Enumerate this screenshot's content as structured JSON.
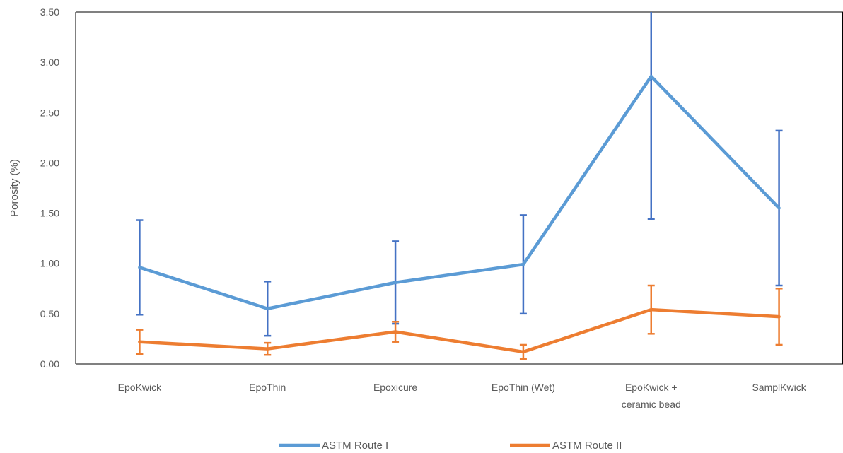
{
  "chart_data": {
    "type": "line",
    "categories": [
      [
        "EpoKwick"
      ],
      [
        "EpoThin"
      ],
      [
        "Epoxicure"
      ],
      [
        "EpoThin (Wet)"
      ],
      [
        "EpoKwick +",
        "ceramic bead"
      ],
      [
        "SamplKwick"
      ]
    ],
    "ylabel": "Porosity (%)",
    "ylim": [
      0,
      3.5
    ],
    "yticks": [
      "0.00",
      "0.50",
      "1.00",
      "1.50",
      "2.00",
      "2.50",
      "3.00",
      "3.50"
    ],
    "ytick_values": [
      0,
      0.5,
      1,
      1.5,
      2,
      2.5,
      3,
      3.5
    ],
    "grid": false,
    "legend_position": "bottom",
    "series": [
      {
        "name": "ASTM Route I",
        "color": "#5B9BD5",
        "error_color": "#4472C4",
        "values": [
          0.96,
          0.55,
          0.81,
          0.99,
          2.86,
          1.55
        ],
        "error": [
          0.47,
          0.27,
          0.41,
          0.49,
          1.42,
          0.77
        ]
      },
      {
        "name": "ASTM Route II",
        "color": "#ED7D31",
        "error_color": "#ED7D31",
        "values": [
          0.22,
          0.15,
          0.32,
          0.12,
          0.54,
          0.47
        ],
        "error": [
          0.12,
          0.06,
          0.1,
          0.07,
          0.24,
          0.28
        ]
      }
    ]
  }
}
